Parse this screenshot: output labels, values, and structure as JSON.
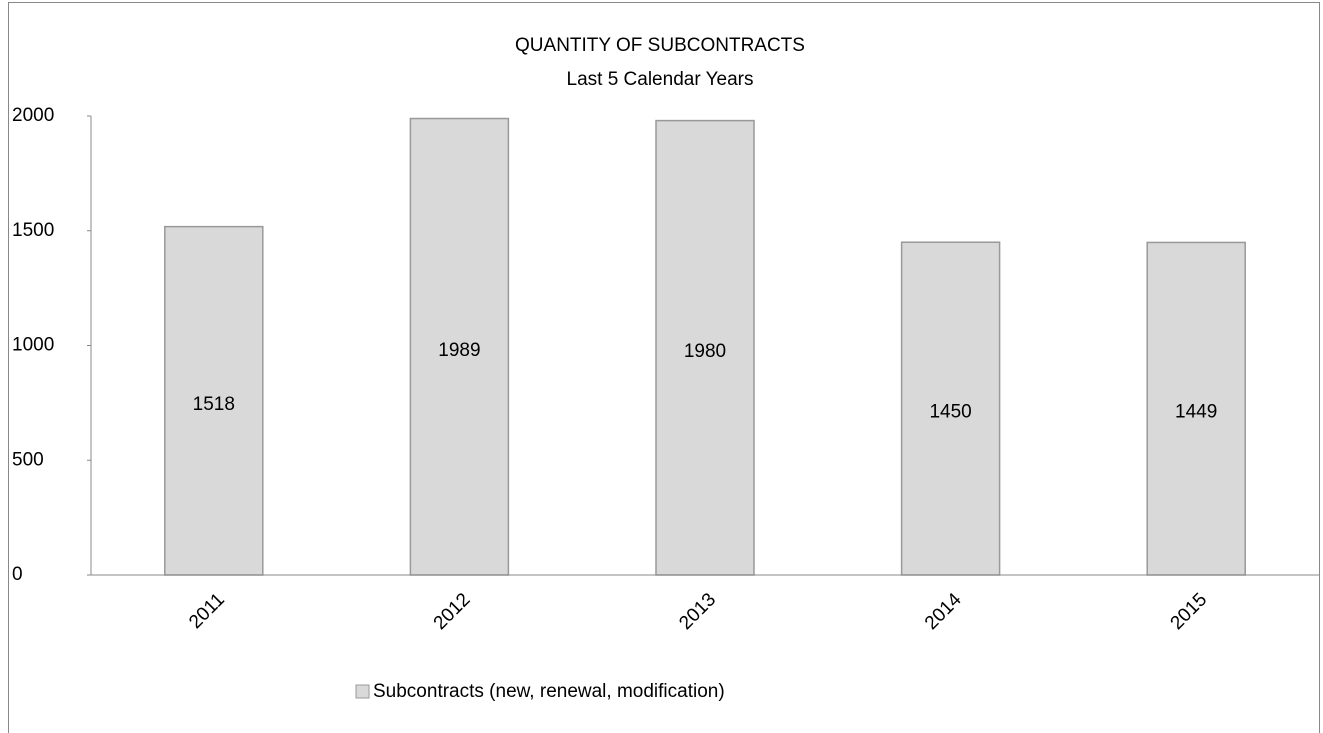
{
  "chart_data": {
    "type": "bar",
    "title": "QUANTITY OF SUBCONTRACTS",
    "subtitle": "Last 5 Calendar Years",
    "categories": [
      "2011",
      "2012",
      "2013",
      "2014",
      "2015"
    ],
    "series": [
      {
        "name": "Subcontracts (new, renewal, modification)",
        "color": "#d9d9d9",
        "values": [
          1518,
          1989,
          1980,
          1450,
          1449
        ]
      }
    ],
    "ylim": [
      0,
      2000
    ],
    "yticks": [
      0,
      500,
      1000,
      1500,
      2000
    ],
    "grid": false,
    "legend": "bottom"
  }
}
